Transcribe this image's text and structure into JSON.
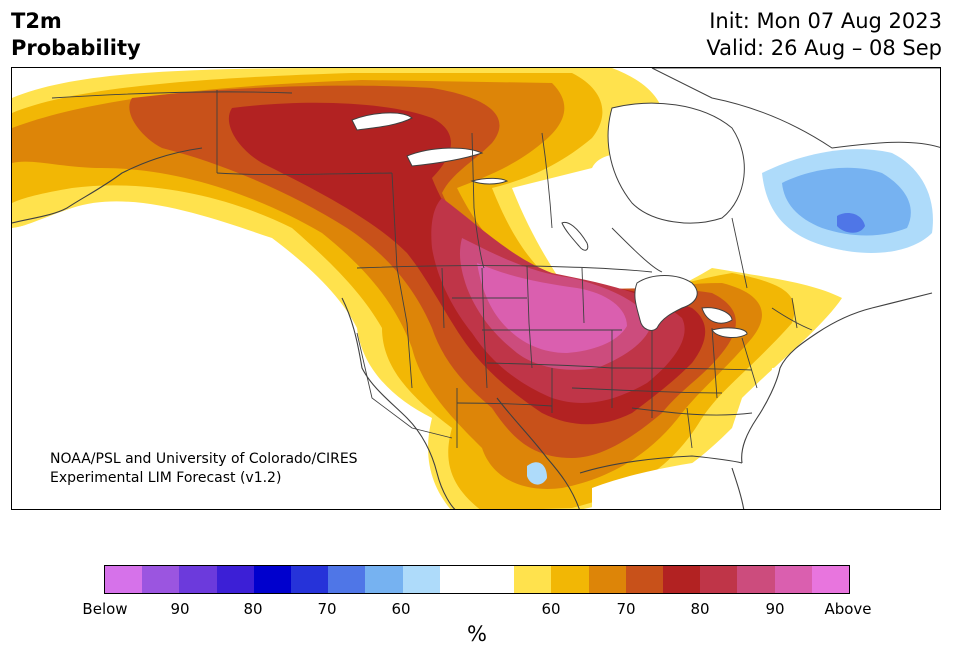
{
  "header": {
    "title_line1": "T2m",
    "title_line2": "Probability",
    "init_line": "Init: Mon 07 Aug 2023",
    "valid_line": "Valid: 26 Aug – 08 Sep"
  },
  "map": {
    "credit_line1": "NOAA/PSL and University of Colorado/CIRES",
    "credit_line2": "Experimental LIM Forecast (v1.2)",
    "region": "North America"
  },
  "colorbar": {
    "colors": [
      "#d672ea",
      "#9b55e0",
      "#6c3adc",
      "#3c1fd6",
      "#0000cd",
      "#2633d9",
      "#4f76e7",
      "#76b2f1",
      "#aedbfa",
      "#ffffff",
      "#ffe24d",
      "#f2b705",
      "#dd8508",
      "#c8511a",
      "#b22222",
      "#bf3548",
      "#cc4c7d",
      "#da5faf",
      "#e875de"
    ],
    "labels": [
      "Below",
      "90",
      "80",
      "70",
      "60",
      "60",
      "70",
      "80",
      "90",
      "Above"
    ],
    "unit": "%"
  }
}
